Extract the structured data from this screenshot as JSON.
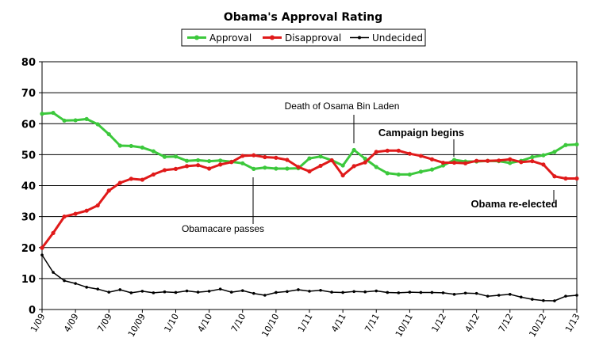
{
  "chart_data": {
    "type": "line",
    "title": "Obama's Approval Rating",
    "xlabel": "",
    "ylabel": "",
    "ylim": [
      0,
      80
    ],
    "y_ticks": [
      "0",
      "10",
      "20",
      "30",
      "40",
      "50",
      "60",
      "70",
      "80"
    ],
    "grid": "horizontal",
    "legend_position": "top",
    "x_tick_labels": [
      "1/09",
      "4/09",
      "7/09",
      "10/09",
      "1/10",
      "4/10",
      "7/10",
      "10/10",
      "1/11",
      "4/11",
      "7/11",
      "10/11",
      "1/12",
      "4/12",
      "7/12",
      "10/12",
      "1/13"
    ],
    "series": [
      {
        "name": "Approval",
        "color": "#3cc83c",
        "values": [
          63.2,
          63.5,
          61.0,
          61.1,
          61.5,
          59.8,
          56.6,
          52.9,
          52.8,
          52.3,
          51.1,
          49.3,
          49.4,
          48.0,
          48.2,
          47.9,
          48.1,
          47.7,
          47.2,
          45.4,
          45.8,
          45.5,
          45.5,
          45.6,
          48.8,
          49.4,
          48.2,
          46.5,
          51.5,
          48.7,
          46.0,
          44.0,
          43.6,
          43.6,
          44.5,
          45.2,
          46.5,
          48.3,
          47.8,
          47.8,
          48.0,
          47.9,
          47.3,
          48.0,
          49.2,
          49.8,
          50.9,
          53.1,
          53.3
        ]
      },
      {
        "name": "Disapproval",
        "color": "#e01a1a",
        "values": [
          19.9,
          24.7,
          30.0,
          30.9,
          31.9,
          33.6,
          38.4,
          40.9,
          42.2,
          41.9,
          43.6,
          45.0,
          45.4,
          46.3,
          46.6,
          45.5,
          46.8,
          47.6,
          49.6,
          49.8,
          49.2,
          49.0,
          48.3,
          46.0,
          44.6,
          46.4,
          48.2,
          43.3,
          46.3,
          47.5,
          50.9,
          51.3,
          51.3,
          50.3,
          49.6,
          48.5,
          47.4,
          47.4,
          47.2,
          48.0,
          48.0,
          48.1,
          48.5,
          47.6,
          47.9,
          46.8,
          43.0,
          42.3,
          42.3
        ]
      },
      {
        "name": "Undecided",
        "color": "#000000",
        "values": [
          17.6,
          12.0,
          9.3,
          8.4,
          7.2,
          6.6,
          5.6,
          6.4,
          5.4,
          5.9,
          5.4,
          5.7,
          5.5,
          6.0,
          5.6,
          5.9,
          6.6,
          5.6,
          6.1,
          5.2,
          4.6,
          5.5,
          5.8,
          6.4,
          5.9,
          6.2,
          5.6,
          5.5,
          5.8,
          5.7,
          6.0,
          5.5,
          5.4,
          5.6,
          5.5,
          5.5,
          5.4,
          4.9,
          5.3,
          5.2,
          4.3,
          4.6,
          4.9,
          4.0,
          3.3,
          2.9,
          2.8,
          4.3,
          4.6
        ]
      }
    ],
    "annotations": [
      {
        "text": "Death of Osama Bin Laden",
        "x_index": 28,
        "y": 51.5
      },
      {
        "text": "Campaign begins",
        "x_index": 37,
        "y": 48.3
      },
      {
        "text": "Obama re-elected",
        "x_index": 46,
        "y": 35.0
      },
      {
        "text": "Obamacare passes",
        "x_index": 19,
        "y": 45.4
      }
    ]
  }
}
